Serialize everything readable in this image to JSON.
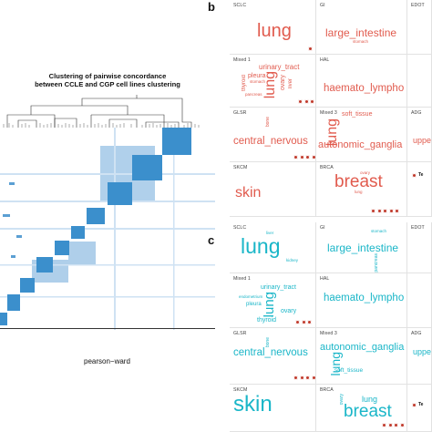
{
  "left": {
    "title_line1": "Clustering of pairwise concordance",
    "title_line2": "between CCLE and CGP cell lines clustering",
    "xlabel": "pearson−ward",
    "block_color": "#3b8fcc",
    "halo_color": "#9cc4e6"
  },
  "panels": {
    "b": {
      "letter": "b",
      "color": "#e15b4e"
    },
    "c": {
      "letter": "c",
      "color": "#1ab6c8"
    }
  },
  "cells": {
    "sclc": "SCLC",
    "gi": "GI",
    "edot": "EDOT",
    "mixed1": "Mixed 1",
    "hal": "HAL",
    "glsr": "GLSR",
    "mixed3": "Mixed 3",
    "adg": "ADG",
    "skcm": "SKCM",
    "brca": "BRCA"
  },
  "words": {
    "lung": "lung",
    "large_intestine": "large_intestine",
    "stomach": "stomach",
    "liver": "liver",
    "urinary_tract": "urinary_tract",
    "pleura": "pleura",
    "thyroid": "thyroid",
    "ovary": "ovary",
    "pancreas": "pancreas",
    "haemato_lympho": "haemato_lympho",
    "soft_tissue": "soft_tissue",
    "central_nervous": "central_nervous",
    "autonomic_ganglia": "autonomic_ganglia",
    "bone": "bone",
    "skin": "skin",
    "breast": "breast",
    "upper_partial": "uppe",
    "te_partial": "Te",
    "kidney": "kidney",
    "endometrium": "endometrium"
  }
}
